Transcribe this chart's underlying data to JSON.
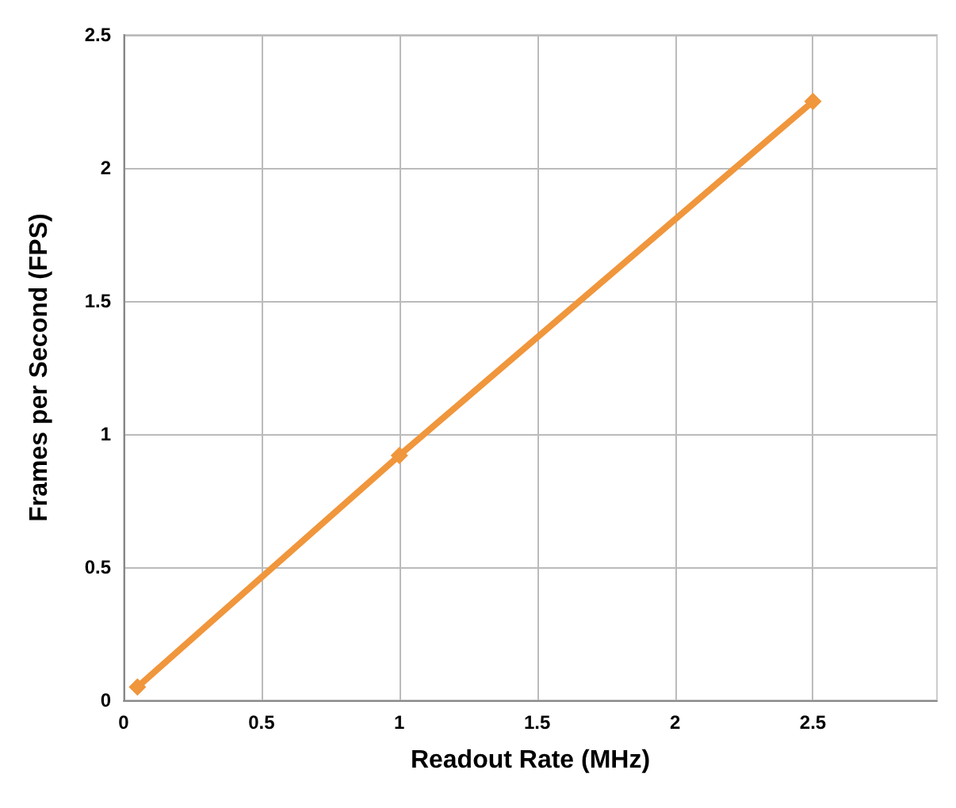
{
  "chart_data": {
    "type": "line",
    "xlabel": "Readout Rate (MHz)",
    "ylabel": "Frames per Second (FPS)",
    "x": [
      0.05,
      1,
      2.5
    ],
    "series": [
      {
        "color": "#f0963c",
        "values": [
          0.05,
          0.92,
          2.25
        ]
      }
    ],
    "xlim": [
      0,
      2.95
    ],
    "xticks": [
      0,
      0.5,
      1,
      1.5,
      2,
      2.5
    ],
    "ylim": [
      0,
      2.5
    ],
    "yticks": [
      0,
      0.5,
      1,
      1.5,
      2,
      2.5
    ],
    "grid": true,
    "marker": "diamond",
    "line_style": "solid"
  }
}
